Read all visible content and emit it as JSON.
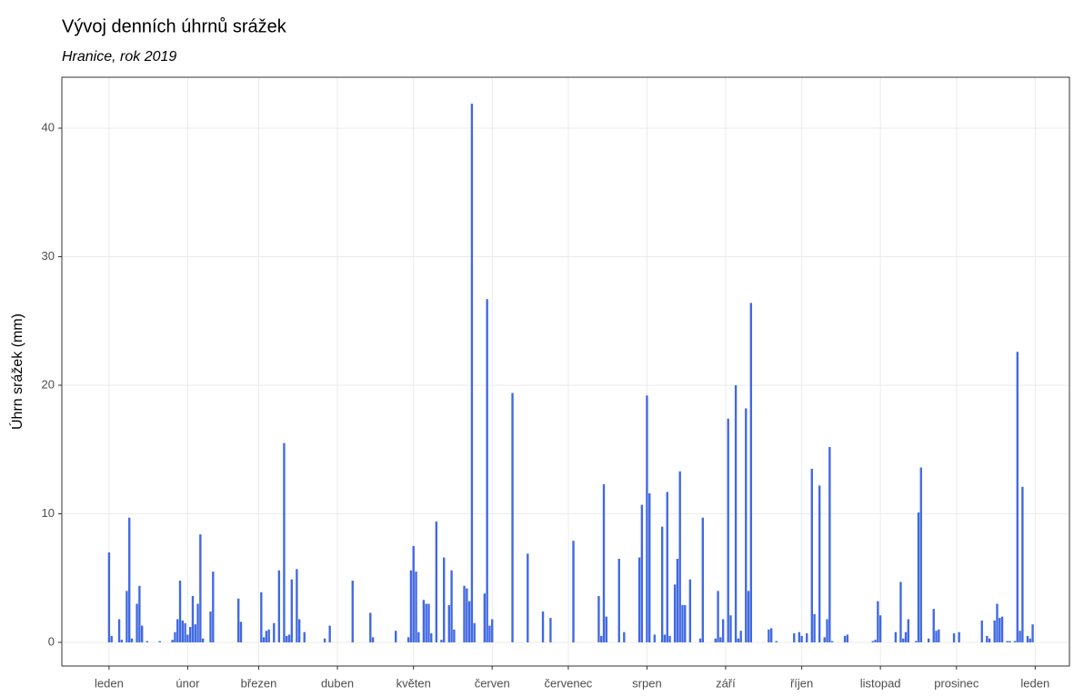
{
  "chart_data": {
    "type": "bar",
    "title": "Vývoj denních úhrnů srážek",
    "subtitle": "Hranice, rok 2019",
    "y_label": "Úhrn srážek (mm)",
    "color": "#4169e1",
    "grid": true,
    "xlim": [
      -18.6,
      378.5
    ],
    "xticks": [
      {
        "value": 0,
        "label": "leden"
      },
      {
        "value": 31,
        "label": "únor"
      },
      {
        "value": 59,
        "label": "březen"
      },
      {
        "value": 90,
        "label": "duben"
      },
      {
        "value": 120,
        "label": "květen"
      },
      {
        "value": 151,
        "label": "červen"
      },
      {
        "value": 181,
        "label": "červenec"
      },
      {
        "value": 212,
        "label": "srpen"
      },
      {
        "value": 243,
        "label": "září"
      },
      {
        "value": 273,
        "label": "říjen"
      },
      {
        "value": 304,
        "label": "listopad"
      },
      {
        "value": 334,
        "label": "prosinec"
      },
      {
        "value": 365,
        "label": "leden"
      }
    ],
    "ylim": [
      -1.84,
      43.96
    ],
    "yticks": [
      0,
      10,
      20,
      30,
      40
    ],
    "x": [
      0,
      1,
      4,
      5,
      7,
      8,
      9,
      11,
      12,
      13,
      15,
      20,
      25,
      26,
      27,
      28,
      29,
      30,
      31,
      32,
      33,
      34,
      35,
      36,
      37,
      40,
      41,
      51,
      52,
      60,
      61,
      62,
      63,
      65,
      67,
      69,
      70,
      71,
      72,
      74,
      75,
      77,
      85,
      87,
      96,
      103,
      104,
      113,
      118,
      119,
      120,
      121,
      122,
      124,
      125,
      126,
      127,
      129,
      131,
      132,
      134,
      135,
      136,
      140,
      141,
      142,
      143,
      144,
      148,
      149,
      150,
      151,
      159,
      165,
      171,
      174,
      183,
      193,
      194,
      195,
      196,
      201,
      203,
      209,
      210,
      212,
      213,
      215,
      218,
      219,
      220,
      221,
      223,
      224,
      225,
      226,
      227,
      229,
      233,
      234,
      239,
      240,
      241,
      242,
      244,
      245,
      247,
      248,
      249,
      251,
      252,
      253,
      260,
      261,
      263,
      270,
      272,
      273,
      275,
      277,
      278,
      280,
      282,
      283,
      284,
      285,
      290,
      291,
      301,
      302,
      303,
      304,
      310,
      312,
      313,
      314,
      315,
      318,
      319,
      320,
      323,
      325,
      326,
      327,
      333,
      335,
      344,
      346,
      347,
      349,
      350,
      351,
      352,
      354,
      355,
      357,
      358,
      359,
      360,
      362,
      363,
      364
    ],
    "values": [
      7.0,
      0.5,
      1.8,
      0.2,
      4.0,
      9.7,
      0.3,
      3.0,
      4.4,
      1.3,
      0.1,
      0.1,
      0.2,
      0.8,
      1.8,
      4.8,
      1.7,
      1.5,
      0.6,
      1.2,
      3.6,
      1.4,
      3.0,
      8.4,
      0.3,
      2.4,
      5.5,
      3.4,
      1.6,
      3.9,
      0.4,
      0.9,
      1.0,
      1.5,
      5.6,
      15.5,
      0.5,
      0.6,
      4.9,
      5.7,
      1.8,
      0.8,
      0.3,
      1.3,
      4.8,
      2.3,
      0.4,
      0.9,
      0.4,
      5.6,
      7.5,
      5.5,
      0.8,
      3.3,
      3.0,
      3.0,
      0.7,
      9.4,
      0.2,
      6.6,
      2.9,
      5.6,
      1.0,
      4.4,
      4.2,
      3.2,
      41.9,
      1.5,
      3.8,
      26.7,
      1.3,
      1.8,
      19.4,
      6.9,
      2.4,
      1.9,
      7.9,
      3.6,
      0.5,
      12.3,
      2.0,
      6.5,
      0.8,
      6.6,
      10.7,
      19.2,
      11.6,
      0.6,
      9.0,
      0.6,
      11.7,
      0.5,
      4.5,
      6.5,
      13.3,
      2.9,
      2.9,
      4.9,
      0.3,
      9.7,
      0.3,
      4.0,
      0.4,
      1.8,
      17.4,
      2.1,
      20.0,
      0.3,
      0.9,
      18.2,
      4.0,
      26.4,
      1.0,
      1.1,
      0.1,
      0.7,
      0.8,
      0.5,
      0.7,
      13.5,
      2.2,
      12.2,
      0.4,
      1.8,
      15.2,
      0.1,
      0.5,
      0.6,
      0.1,
      0.2,
      3.2,
      2.1,
      0.8,
      4.7,
      0.3,
      0.8,
      1.8,
      0.1,
      10.1,
      13.6,
      0.3,
      2.6,
      0.9,
      1.0,
      0.7,
      0.8,
      1.7,
      0.5,
      0.3,
      1.7,
      3.0,
      1.9,
      2.0,
      0.1,
      0.1,
      0.1,
      22.6,
      0.9,
      12.1,
      0.5,
      0.3,
      1.4
    ]
  }
}
